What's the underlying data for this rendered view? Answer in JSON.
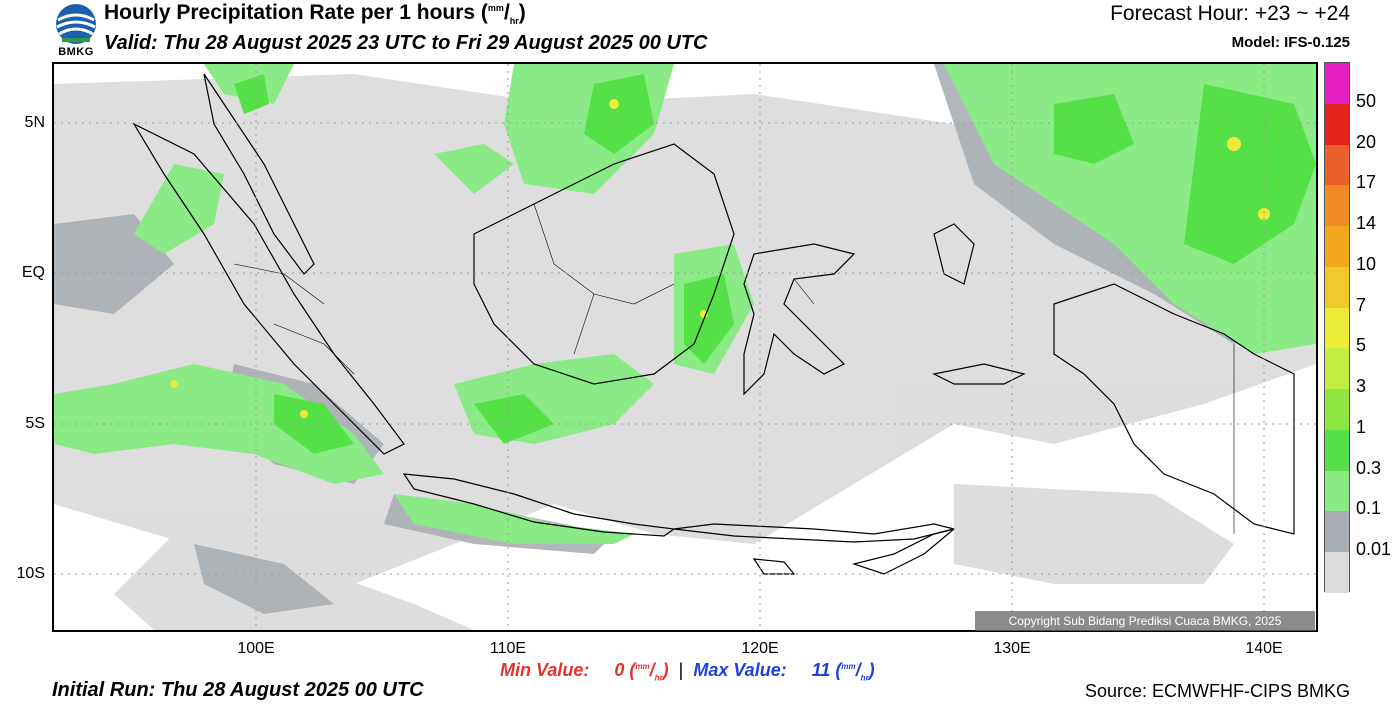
{
  "header": {
    "logo_text": "BMKG",
    "title": "Hourly Precipitation Rate per 1 hours",
    "unit_num": "mm",
    "unit_den": "hr",
    "valid": "Valid: Thu 28 August 2025 23 UTC to Fri 29 August 2025 00 UTC",
    "forecast_hour": "Forecast Hour: +23 ~ +24",
    "model": "Model: IFS-0.125"
  },
  "map": {
    "lat_labels": [
      "5N",
      "EQ",
      "5S",
      "10S"
    ],
    "lon_labels": [
      "100E",
      "110E",
      "120E",
      "130E",
      "140E"
    ],
    "copyright": "Copyright Sub Bidang Prediksi Cuaca BMKG, 2025"
  },
  "colorbar": {
    "labels": [
      "50",
      "20",
      "17",
      "14",
      "10",
      "7",
      "5",
      "3",
      "1",
      "0.3",
      "0.1",
      "0.01"
    ],
    "colors": [
      "#e51fc2",
      "#e3241f",
      "#e9602a",
      "#f08a24",
      "#f2a71e",
      "#f1c92a",
      "#ecec38",
      "#c5ee44",
      "#8fe641",
      "#55e048",
      "#8aea86",
      "#a9aeb4",
      "#dcdcdc"
    ]
  },
  "footer": {
    "min_label": "Min Value:",
    "min_value": "0",
    "max_label": "Max Value:",
    "max_value": "11",
    "unit_num": "mm",
    "unit_den": "hr",
    "initial_run": "Initial Run: Thu 28 August 2025 00 UTC",
    "source": "Source: ECMWFHF-CIPS BMKG"
  }
}
